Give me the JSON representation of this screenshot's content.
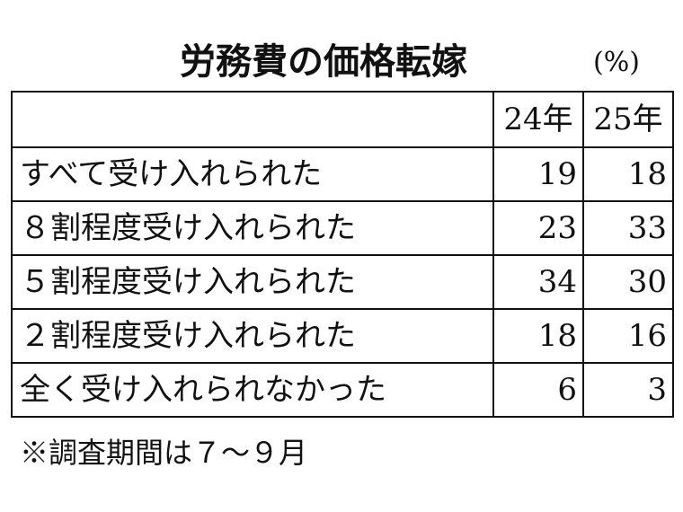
{
  "chart_data": {
    "type": "table",
    "title": "労務費の価格転嫁",
    "unit": "(%)",
    "columns": [
      "",
      "24年",
      "25年"
    ],
    "rows": [
      {
        "label": "すべて受け入れられた",
        "values": [
          "19",
          "18"
        ]
      },
      {
        "label": "８割程度受け入れられた",
        "values": [
          "23",
          "33"
        ]
      },
      {
        "label": "５割程度受け入れられた",
        "values": [
          "34",
          "30"
        ]
      },
      {
        "label": "２割程度受け入れられた",
        "values": [
          "18",
          "16"
        ]
      },
      {
        "label": "全く受け入れられなかった",
        "values": [
          "6",
          "3"
        ]
      }
    ],
    "note": "※調査期間は７～９月"
  }
}
